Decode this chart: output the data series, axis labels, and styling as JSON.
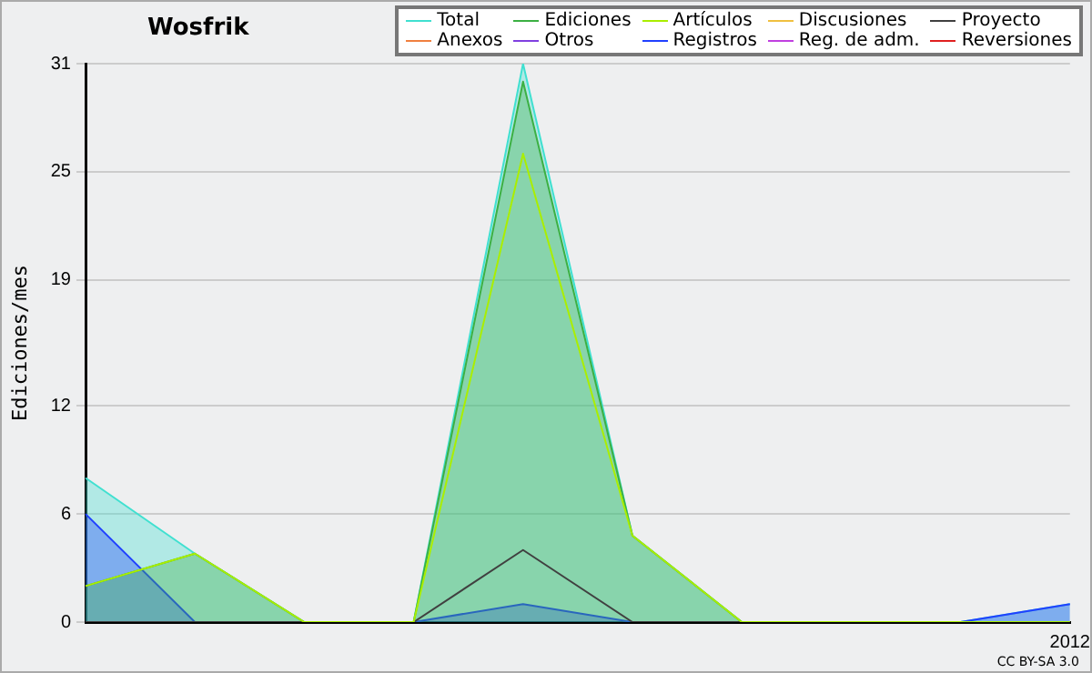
{
  "chart_data": {
    "type": "line",
    "title": "Wosfrik",
    "ylabel": "Ediciones/mes",
    "categories": [
      null,
      null,
      null,
      null,
      null,
      null,
      null,
      null,
      null,
      "2012"
    ],
    "series": [
      {
        "name": "Discusiones",
        "color": "#f0c040",
        "values": [
          null,
          null,
          null,
          null,
          null,
          null,
          null,
          null,
          null,
          null
        ]
      },
      {
        "name": "Anexos",
        "color": "#f08040",
        "values": [
          null,
          null,
          null,
          null,
          null,
          null,
          null,
          null,
          null,
          null
        ]
      },
      {
        "name": "Otros",
        "color": "#8040e0",
        "values": [
          null,
          null,
          null,
          null,
          null,
          null,
          null,
          null,
          null,
          null
        ]
      },
      {
        "name": "Reg. de adm.",
        "color": "#c040e0",
        "values": [
          null,
          null,
          null,
          null,
          null,
          null,
          null,
          null,
          null,
          null
        ]
      },
      {
        "name": "Reversiones",
        "color": "#e02020",
        "values": [
          null,
          null,
          null,
          null,
          null,
          null,
          null,
          null,
          null,
          null
        ]
      },
      {
        "name": "Total",
        "type": "area",
        "color": "#40e0d0",
        "values": [
          8,
          3.8,
          0,
          0,
          31,
          4.8,
          0,
          0,
          0,
          1
        ]
      },
      {
        "name": "Registros",
        "type": "area",
        "color": "#2040ff",
        "values": [
          6,
          0,
          0,
          0,
          1,
          0,
          0,
          0,
          0,
          1
        ]
      },
      {
        "name": "Ediciones",
        "type": "area",
        "color": "#3cb043",
        "values": [
          2,
          3.8,
          0,
          0,
          30,
          4.8,
          0,
          0,
          0,
          0
        ]
      },
      {
        "name": "Artículos",
        "color": "#aaee00",
        "values": [
          2,
          3.8,
          0,
          0,
          26,
          4.8,
          0,
          0,
          0,
          0
        ]
      },
      {
        "name": "Proyecto",
        "color": "#404040",
        "values": [
          0,
          0,
          0,
          0,
          4,
          0,
          0,
          0,
          0,
          0
        ]
      }
    ],
    "ylim": [
      0,
      31
    ],
    "yticks": [
      0,
      6,
      12,
      19,
      25,
      31
    ],
    "grid": "y",
    "legend": "top right",
    "marker": "none",
    "annotations": [
      "CC BY-SA 3.0"
    ]
  }
}
